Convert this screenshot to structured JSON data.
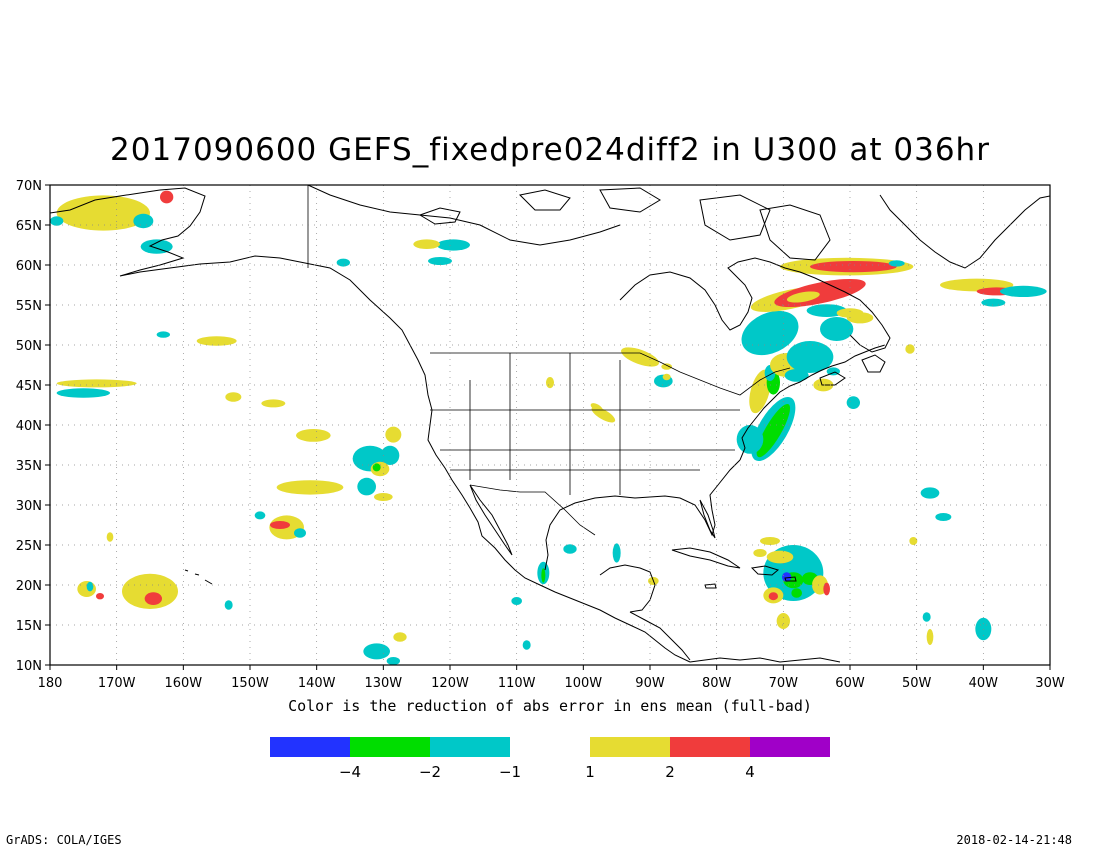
{
  "title": "2017090600 GEFS_fixedpre024diff2 in U300 at 036hr",
  "caption": "Color is the reduction of abs error in ens mean (full-bad)",
  "footer_left": "GrADS: COLA/IGES",
  "footer_right": "2018-02-14-21:48",
  "map": {
    "lon_range": [
      -180,
      -30
    ],
    "lat_range": [
      10,
      70
    ],
    "lon_ticks": [
      "180",
      "170W",
      "160W",
      "150W",
      "140W",
      "130W",
      "120W",
      "110W",
      "100W",
      "90W",
      "80W",
      "70W",
      "60W",
      "50W",
      "40W",
      "30W"
    ],
    "lat_ticks": [
      "10N",
      "15N",
      "20N",
      "25N",
      "30N",
      "35N",
      "40N",
      "45N",
      "50N",
      "55N",
      "60N",
      "65N",
      "70N"
    ],
    "grid": "dotted"
  },
  "colorbar": {
    "negative": [
      {
        "color": "#2233ff"
      },
      {
        "color": "#00dd00"
      },
      {
        "color": "#00c8c8"
      }
    ],
    "positive": [
      {
        "color": "#e6dc32"
      },
      {
        "color": "#f03c3c"
      },
      {
        "color": "#a000c8"
      }
    ],
    "labels": [
      {
        "text": "−4",
        "pos": "neg-1"
      },
      {
        "text": "−2",
        "pos": "neg-2"
      },
      {
        "text": "−1",
        "pos": "neg-3"
      },
      {
        "text": "1",
        "pos": "pos-0"
      },
      {
        "text": "2",
        "pos": "pos-1"
      },
      {
        "text": "4",
        "pos": "pos-2"
      }
    ]
  },
  "blobs": [
    {
      "lon": -172,
      "lat": 66.5,
      "rx": 7,
      "ry": 2.2,
      "c": "yellow"
    },
    {
      "lon": -162.5,
      "lat": 68.5,
      "rx": 1,
      "ry": 0.8,
      "c": "red"
    },
    {
      "lon": -166,
      "lat": 65.5,
      "rx": 1.5,
      "ry": 0.9,
      "c": "cyan"
    },
    {
      "lon": -164,
      "lat": 62.3,
      "rx": 2.4,
      "ry": 0.9,
      "c": "cyan"
    },
    {
      "lon": -179,
      "lat": 65.5,
      "rx": 1,
      "ry": 0.6,
      "c": "cyan"
    },
    {
      "lon": -119.5,
      "lat": 62.5,
      "rx": 2.5,
      "ry": 0.7,
      "c": "cyan"
    },
    {
      "lon": -123.5,
      "lat": 62.6,
      "rx": 2,
      "ry": 0.6,
      "c": "yellow"
    },
    {
      "lon": -121.5,
      "lat": 60.5,
      "rx": 1.8,
      "ry": 0.5,
      "c": "cyan"
    },
    {
      "lon": -136,
      "lat": 60.3,
      "rx": 1,
      "ry": 0.5,
      "c": "cyan"
    },
    {
      "lon": -163,
      "lat": 51.3,
      "rx": 1,
      "ry": 0.4,
      "c": "cyan"
    },
    {
      "lon": -155,
      "lat": 50.5,
      "rx": 3,
      "ry": 0.6,
      "c": "yellow"
    },
    {
      "lon": -173,
      "lat": 45.2,
      "rx": 6,
      "ry": 0.5,
      "c": "yellow"
    },
    {
      "lon": -175,
      "lat": 44,
      "rx": 4,
      "ry": 0.6,
      "c": "cyan"
    },
    {
      "lon": -152.5,
      "lat": 43.5,
      "rx": 1.2,
      "ry": 0.6,
      "c": "yellow"
    },
    {
      "lon": -146.5,
      "lat": 42.7,
      "rx": 1.8,
      "ry": 0.5,
      "c": "yellow"
    },
    {
      "lon": -140.5,
      "lat": 38.7,
      "rx": 2.6,
      "ry": 0.8,
      "c": "yellow"
    },
    {
      "lon": -132,
      "lat": 35.8,
      "rx": 2.6,
      "ry": 1.6,
      "c": "cyan"
    },
    {
      "lon": -129,
      "lat": 36.2,
      "rx": 1.4,
      "ry": 1.2,
      "c": "cyan"
    },
    {
      "lon": -128.5,
      "lat": 38.8,
      "rx": 1.2,
      "ry": 1,
      "c": "yellow"
    },
    {
      "lon": -130.5,
      "lat": 34.5,
      "rx": 1.4,
      "ry": 0.9,
      "c": "yellow"
    },
    {
      "lon": -131,
      "lat": 34.7,
      "rx": 0.6,
      "ry": 0.5,
      "c": "green"
    },
    {
      "lon": -141,
      "lat": 32.2,
      "rx": 5,
      "ry": 0.9,
      "c": "yellow"
    },
    {
      "lon": -132.5,
      "lat": 32.3,
      "rx": 1.4,
      "ry": 1.1,
      "c": "cyan"
    },
    {
      "lon": -130,
      "lat": 31,
      "rx": 1.4,
      "ry": 0.5,
      "c": "yellow"
    },
    {
      "lon": -144.5,
      "lat": 27.2,
      "rx": 2.6,
      "ry": 1.5,
      "c": "yellow"
    },
    {
      "lon": -145.5,
      "lat": 27.5,
      "rx": 1.5,
      "ry": 0.5,
      "c": "red"
    },
    {
      "lon": -148.5,
      "lat": 28.7,
      "rx": 0.8,
      "ry": 0.5,
      "c": "cyan"
    },
    {
      "lon": -142.5,
      "lat": 26.5,
      "rx": 0.9,
      "ry": 0.6,
      "c": "cyan"
    },
    {
      "lon": -171,
      "lat": 26,
      "rx": 0.5,
      "ry": 0.6,
      "c": "yellow"
    },
    {
      "lon": -165,
      "lat": 19.2,
      "rx": 4.2,
      "ry": 2.2,
      "c": "yellow"
    },
    {
      "lon": -164.5,
      "lat": 18.3,
      "rx": 1.3,
      "ry": 0.8,
      "c": "red"
    },
    {
      "lon": -174.5,
      "lat": 19.5,
      "rx": 1.4,
      "ry": 1,
      "c": "yellow"
    },
    {
      "lon": -174,
      "lat": 19.8,
      "rx": 0.5,
      "ry": 0.6,
      "c": "cyan"
    },
    {
      "lon": -172.5,
      "lat": 18.6,
      "rx": 0.6,
      "ry": 0.4,
      "c": "red"
    },
    {
      "lon": -153.2,
      "lat": 17.5,
      "rx": 0.6,
      "ry": 0.6,
      "c": "cyan"
    },
    {
      "lon": -131,
      "lat": 11.7,
      "rx": 2,
      "ry": 1,
      "c": "cyan"
    },
    {
      "lon": -127.5,
      "lat": 13.5,
      "rx": 1,
      "ry": 0.6,
      "c": "yellow"
    },
    {
      "lon": -128.5,
      "lat": 10.5,
      "rx": 1,
      "ry": 0.5,
      "c": "cyan"
    },
    {
      "lon": -106,
      "lat": 21.5,
      "rx": 0.9,
      "ry": 1.4,
      "c": "cyan"
    },
    {
      "lon": -106,
      "lat": 21.2,
      "rx": 0.3,
      "ry": 0.9,
      "c": "green"
    },
    {
      "lon": -102,
      "lat": 24.5,
      "rx": 1,
      "ry": 0.6,
      "c": "cyan"
    },
    {
      "lon": -110,
      "lat": 18,
      "rx": 0.8,
      "ry": 0.5,
      "c": "cyan"
    },
    {
      "lon": -95,
      "lat": 24,
      "rx": 0.6,
      "ry": 1.2,
      "c": "cyan"
    },
    {
      "lon": -89.5,
      "lat": 20.5,
      "rx": 0.8,
      "ry": 0.5,
      "c": "yellow"
    },
    {
      "lon": -108.5,
      "lat": 12.5,
      "rx": 0.6,
      "ry": 0.6,
      "c": "cyan"
    },
    {
      "lon": -68.5,
      "lat": 21.5,
      "rx": 4.5,
      "ry": 3.5,
      "c": "cyan"
    },
    {
      "lon": -70.5,
      "lat": 23.5,
      "rx": 2,
      "ry": 0.8,
      "c": "yellow"
    },
    {
      "lon": -68.5,
      "lat": 20.6,
      "rx": 1.5,
      "ry": 1,
      "c": "green"
    },
    {
      "lon": -69.5,
      "lat": 21,
      "rx": 0.7,
      "ry": 0.6,
      "c": "blue"
    },
    {
      "lon": -66,
      "lat": 20.8,
      "rx": 1.2,
      "ry": 0.8,
      "c": "green"
    },
    {
      "lon": -64.5,
      "lat": 20,
      "rx": 1.2,
      "ry": 1.2,
      "c": "yellow"
    },
    {
      "lon": -63.5,
      "lat": 19.5,
      "rx": 0.5,
      "ry": 0.8,
      "c": "red"
    },
    {
      "lon": -71.5,
      "lat": 18.7,
      "rx": 1.5,
      "ry": 1,
      "c": "yellow"
    },
    {
      "lon": -71.5,
      "lat": 18.6,
      "rx": 0.7,
      "ry": 0.5,
      "c": "red"
    },
    {
      "lon": -68,
      "lat": 19,
      "rx": 0.8,
      "ry": 0.6,
      "c": "green"
    },
    {
      "lon": -73.5,
      "lat": 24,
      "rx": 1,
      "ry": 0.5,
      "c": "yellow"
    },
    {
      "lon": -70,
      "lat": 15.5,
      "rx": 1,
      "ry": 1,
      "c": "yellow"
    },
    {
      "lon": -72,
      "lat": 25.5,
      "rx": 1.5,
      "ry": 0.5,
      "c": "yellow"
    },
    {
      "lon": -48,
      "lat": 31.5,
      "rx": 1.4,
      "ry": 0.7,
      "c": "cyan"
    },
    {
      "lon": -46,
      "lat": 28.5,
      "rx": 1.2,
      "ry": 0.5,
      "c": "cyan"
    },
    {
      "lon": -50.5,
      "lat": 25.5,
      "rx": 0.6,
      "ry": 0.5,
      "c": "yellow"
    },
    {
      "lon": -40,
      "lat": 14.5,
      "rx": 1.2,
      "ry": 1.4,
      "c": "cyan"
    },
    {
      "lon": -48.5,
      "lat": 16,
      "rx": 0.6,
      "ry": 0.6,
      "c": "cyan"
    },
    {
      "lon": -48,
      "lat": 13.5,
      "rx": 0.5,
      "ry": 1,
      "c": "yellow"
    },
    {
      "lon": -59.5,
      "lat": 42.8,
      "rx": 1,
      "ry": 0.8,
      "c": "cyan"
    },
    {
      "lon": -51,
      "lat": 49.5,
      "rx": 0.7,
      "ry": 0.6,
      "c": "yellow"
    },
    {
      "lon": -71.5,
      "lat": 39.5,
      "rx": 2.2,
      "ry": 4.5,
      "c": "cyan",
      "rot": 30
    },
    {
      "lon": -71.5,
      "lat": 39.3,
      "rx": 1.2,
      "ry": 3.8,
      "c": "green",
      "rot": 30
    },
    {
      "lon": -75,
      "lat": 38.2,
      "rx": 2,
      "ry": 1.8,
      "c": "cyan"
    },
    {
      "lon": -73.5,
      "lat": 44.2,
      "rx": 1.4,
      "ry": 2.8,
      "c": "yellow",
      "rot": 15
    },
    {
      "lon": -71.5,
      "lat": 45.3,
      "rx": 1,
      "ry": 1.5,
      "c": "green"
    },
    {
      "lon": -72,
      "lat": 46.5,
      "rx": 0.8,
      "ry": 1,
      "c": "cyan"
    },
    {
      "lon": -69.5,
      "lat": 47.5,
      "rx": 2.5,
      "ry": 1.5,
      "c": "yellow"
    },
    {
      "lon": -66,
      "lat": 48.5,
      "rx": 3.5,
      "ry": 2,
      "c": "cyan"
    },
    {
      "lon": -68,
      "lat": 46.2,
      "rx": 1.8,
      "ry": 0.8,
      "c": "cyan"
    },
    {
      "lon": -64,
      "lat": 45,
      "rx": 1.5,
      "ry": 0.8,
      "c": "yellow"
    },
    {
      "lon": -62.5,
      "lat": 46.7,
      "rx": 1,
      "ry": 0.5,
      "c": "cyan"
    },
    {
      "lon": -72,
      "lat": 51.5,
      "rx": 4.5,
      "ry": 2.5,
      "c": "cyan",
      "rot": -25
    },
    {
      "lon": -62,
      "lat": 52,
      "rx": 2.5,
      "ry": 1.5,
      "c": "cyan"
    },
    {
      "lon": -58.5,
      "lat": 53.4,
      "rx": 2,
      "ry": 0.7,
      "c": "yellow"
    },
    {
      "lon": -69,
      "lat": 55.7,
      "rx": 6,
      "ry": 1.2,
      "c": "yellow",
      "rot": -12
    },
    {
      "lon": -64.5,
      "lat": 56.5,
      "rx": 7,
      "ry": 1.3,
      "c": "red",
      "rot": -12
    },
    {
      "lon": -67,
      "lat": 56,
      "rx": 2.5,
      "ry": 0.6,
      "c": "yellow",
      "rot": -10
    },
    {
      "lon": -63.5,
      "lat": 54.3,
      "rx": 3,
      "ry": 0.8,
      "c": "cyan"
    },
    {
      "lon": -60,
      "lat": 54,
      "rx": 2,
      "ry": 0.6,
      "c": "yellow"
    },
    {
      "lon": -60.5,
      "lat": 59.8,
      "rx": 10,
      "ry": 1.1,
      "c": "yellow"
    },
    {
      "lon": -59.5,
      "lat": 59.8,
      "rx": 6.5,
      "ry": 0.7,
      "c": "red"
    },
    {
      "lon": -53,
      "lat": 60.2,
      "rx": 1.2,
      "ry": 0.4,
      "c": "cyan"
    },
    {
      "lon": -41,
      "lat": 57.5,
      "rx": 5.5,
      "ry": 0.8,
      "c": "yellow"
    },
    {
      "lon": -38,
      "lat": 56.7,
      "rx": 3,
      "ry": 0.5,
      "c": "red"
    },
    {
      "lon": -34,
      "lat": 56.7,
      "rx": 3.5,
      "ry": 0.7,
      "c": "cyan"
    },
    {
      "lon": -38.5,
      "lat": 55.3,
      "rx": 1.8,
      "ry": 0.5,
      "c": "cyan"
    },
    {
      "lon": -91.5,
      "lat": 48.5,
      "rx": 3,
      "ry": 0.9,
      "c": "yellow",
      "rot": 20
    },
    {
      "lon": -88,
      "lat": 45.5,
      "rx": 1.4,
      "ry": 0.8,
      "c": "cyan"
    },
    {
      "lon": -87.5,
      "lat": 46,
      "rx": 0.6,
      "ry": 0.4,
      "c": "yellow"
    },
    {
      "lon": -87.5,
      "lat": 47.3,
      "rx": 0.8,
      "ry": 0.4,
      "c": "yellow"
    },
    {
      "lon": -97,
      "lat": 41.3,
      "rx": 2,
      "ry": 0.6,
      "c": "yellow",
      "rot": 30
    },
    {
      "lon": -98,
      "lat": 42.2,
      "rx": 1,
      "ry": 0.4,
      "c": "yellow",
      "rot": 30
    },
    {
      "lon": -105,
      "lat": 45.3,
      "rx": 0.6,
      "ry": 0.7,
      "c": "yellow"
    }
  ]
}
